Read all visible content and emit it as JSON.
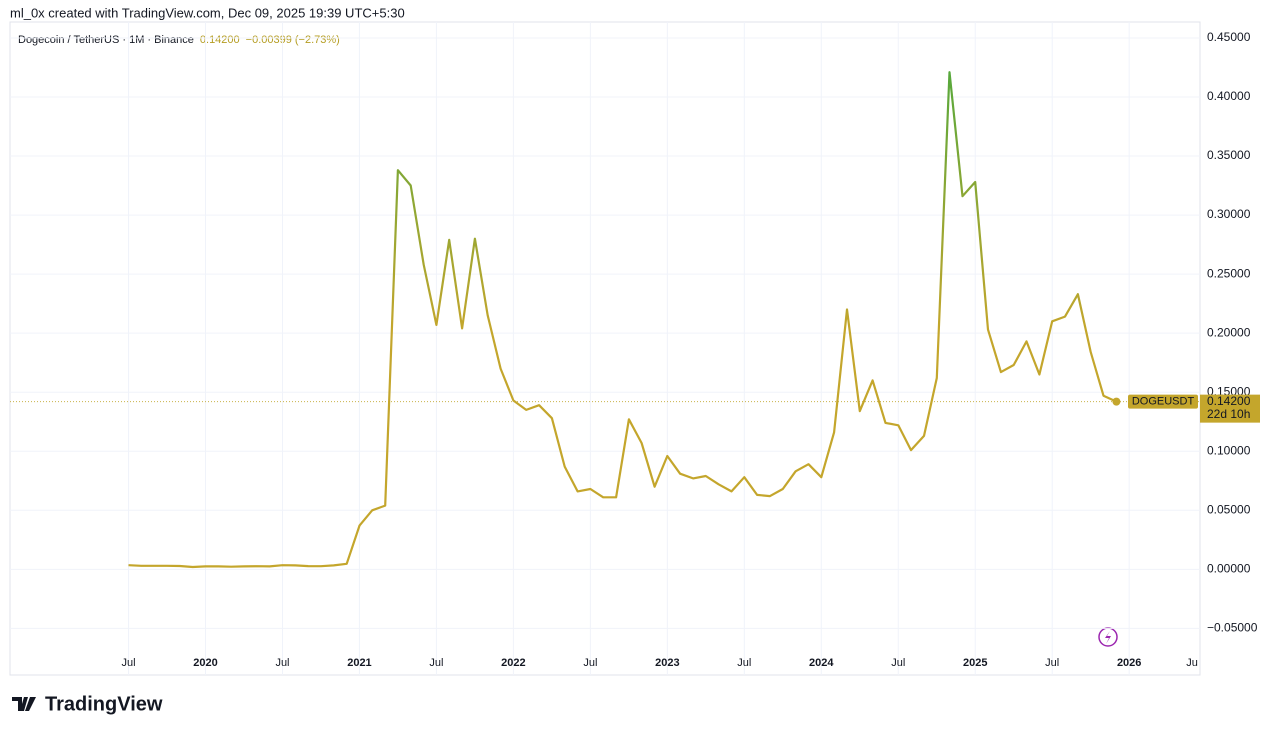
{
  "header": {
    "credit": "ml_0x created with TradingView.com, Dec 09, 2025 19:39 UTC+5:30",
    "brand": "TradingView"
  },
  "chart_data": {
    "type": "line",
    "title": "Dogecoin / TetherUS · 1M · Binance",
    "change": "−0.00399 (−2.73%)",
    "price_line": {
      "value": 0.142,
      "label": "0.14200",
      "symbol": "DOGEUSDT",
      "countdown": "22d 10h"
    },
    "color": "#c4a62c",
    "peak_color": "#55a83c",
    "grid": true,
    "xlim": [
      2018.73,
      2026.46
    ],
    "ylim": [
      -0.0895,
      0.4635
    ],
    "xticks": [
      {
        "value": 2019.5,
        "label": "Jul"
      },
      2020,
      {
        "value": 2020.5,
        "label": "Jul"
      },
      2021,
      {
        "value": 2021.5,
        "label": "Jul"
      },
      2022,
      {
        "value": 2022.5,
        "label": "Jul"
      },
      2023,
      {
        "value": 2023.5,
        "label": "Jul"
      },
      2024,
      {
        "value": 2024.5,
        "label": "Jul"
      },
      2025,
      {
        "value": 2025.5,
        "label": "Jul"
      },
      2026,
      {
        "value": 2026.5,
        "label": "Ju"
      }
    ],
    "yticks": [
      {
        "value": -0.05,
        "label": "−0.05000"
      },
      {
        "value": 0,
        "label": "0.00000"
      },
      {
        "value": 0.05,
        "label": "0.05000"
      },
      {
        "value": 0.1,
        "label": "0.10000"
      },
      {
        "value": 0.15,
        "label": "0.15000"
      },
      {
        "value": 0.2,
        "label": "0.20000"
      },
      {
        "value": 0.25,
        "label": "0.25000"
      },
      {
        "value": 0.3,
        "label": "0.30000"
      },
      {
        "value": 0.35,
        "label": "0.35000"
      },
      {
        "value": 0.4,
        "label": "0.40000"
      },
      {
        "value": 0.45,
        "label": "0.45000"
      }
    ],
    "x": [
      2019.5,
      2019.583,
      2019.667,
      2019.75,
      2019.833,
      2019.917,
      2020.0,
      2020.083,
      2020.167,
      2020.25,
      2020.333,
      2020.417,
      2020.5,
      2020.583,
      2020.667,
      2020.75,
      2020.833,
      2020.917,
      2021.0,
      2021.083,
      2021.167,
      2021.25,
      2021.333,
      2021.417,
      2021.5,
      2021.583,
      2021.667,
      2021.75,
      2021.833,
      2021.917,
      2022.0,
      2022.083,
      2022.167,
      2022.25,
      2022.333,
      2022.417,
      2022.5,
      2022.583,
      2022.667,
      2022.75,
      2022.833,
      2022.917,
      2023.0,
      2023.083,
      2023.167,
      2023.25,
      2023.333,
      2023.417,
      2023.5,
      2023.583,
      2023.667,
      2023.75,
      2023.833,
      2023.917,
      2024.0,
      2024.083,
      2024.167,
      2024.25,
      2024.333,
      2024.417,
      2024.5,
      2024.583,
      2024.667,
      2024.75,
      2024.833,
      2024.917,
      2025.0,
      2025.083,
      2025.167,
      2025.25,
      2025.333,
      2025.417,
      2025.5,
      2025.583,
      2025.667,
      2025.75,
      2025.833,
      2025.917
    ],
    "values": [
      0.0035,
      0.003,
      0.003,
      0.003,
      0.0028,
      0.002,
      0.0025,
      0.0025,
      0.0022,
      0.0025,
      0.0026,
      0.0025,
      0.0035,
      0.0033,
      0.0027,
      0.0026,
      0.0033,
      0.0047,
      0.037,
      0.05,
      0.054,
      0.338,
      0.325,
      0.258,
      0.207,
      0.279,
      0.204,
      0.28,
      0.215,
      0.17,
      0.143,
      0.135,
      0.139,
      0.128,
      0.087,
      0.066,
      0.068,
      0.061,
      0.061,
      0.127,
      0.107,
      0.07,
      0.096,
      0.081,
      0.077,
      0.079,
      0.072,
      0.066,
      0.078,
      0.063,
      0.062,
      0.068,
      0.083,
      0.089,
      0.078,
      0.116,
      0.22,
      0.134,
      0.16,
      0.124,
      0.122,
      0.101,
      0.113,
      0.162,
      0.421,
      0.316,
      0.328,
      0.203,
      0.167,
      0.173,
      0.193,
      0.165,
      0.21,
      0.214,
      0.233,
      0.184,
      0.147,
      0.142
    ]
  }
}
